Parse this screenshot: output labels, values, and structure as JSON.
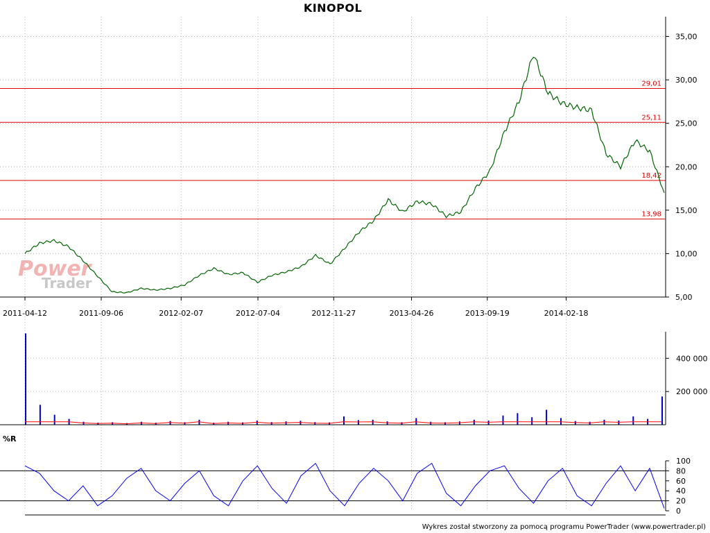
{
  "title": "KINOPOL",
  "footer": "Wykres został stworzony za pomocą programu PowerTrader (www.powertrader.pl)",
  "watermark": {
    "line1": "Power",
    "line2": "Trader"
  },
  "colors": {
    "price": "#006400",
    "levels": "#e00000",
    "volume": "#0000cc",
    "volume_avg": "#ff0000",
    "percent_r": "#0000ff",
    "grid": "#b4b4b4"
  },
  "chart_data": [
    {
      "type": "line",
      "panel": "price",
      "x_tick_labels": [
        "2011-04-12",
        "2011-09-06",
        "2012-02-07",
        "2012-07-04",
        "2012-11-27",
        "2013-04-26",
        "2013-09-19",
        "2014-02-18"
      ],
      "y_ticks": [
        5,
        10,
        15,
        20,
        25,
        30,
        35
      ],
      "y_tick_labels": [
        "5,00",
        "10,00",
        "15,00",
        "20,00",
        "25,00",
        "30,00",
        "35,00"
      ],
      "ylim": [
        5,
        36
      ],
      "grid": true,
      "series": [
        {
          "name": "",
          "points": [
            [
              "2011-04-12",
              10.0
            ],
            [
              "2011-05-10",
              11.2
            ],
            [
              "2011-06-07",
              11.5
            ],
            [
              "2011-07-05",
              10.8
            ],
            [
              "2011-08-02",
              9.2
            ],
            [
              "2011-08-30",
              7.4
            ],
            [
              "2011-09-27",
              5.6
            ],
            [
              "2011-10-25",
              5.5
            ],
            [
              "2011-11-22",
              6.0
            ],
            [
              "2011-12-20",
              5.8
            ],
            [
              "2012-01-17",
              6.0
            ],
            [
              "2012-02-14",
              6.4
            ],
            [
              "2012-03-13",
              7.5
            ],
            [
              "2012-04-10",
              8.3
            ],
            [
              "2012-05-08",
              7.6
            ],
            [
              "2012-06-05",
              7.8
            ],
            [
              "2012-07-03",
              6.7
            ],
            [
              "2012-07-31",
              7.5
            ],
            [
              "2012-08-28",
              7.9
            ],
            [
              "2012-09-25",
              8.5
            ],
            [
              "2012-10-23",
              9.8
            ],
            [
              "2012-11-20",
              8.8
            ],
            [
              "2012-12-18",
              10.6
            ],
            [
              "2013-01-15",
              12.5
            ],
            [
              "2013-02-12",
              13.8
            ],
            [
              "2013-03-12",
              16.2
            ],
            [
              "2013-04-09",
              14.8
            ],
            [
              "2013-05-07",
              16.0
            ],
            [
              "2013-06-04",
              15.7
            ],
            [
              "2013-07-02",
              14.3
            ],
            [
              "2013-07-30",
              14.8
            ],
            [
              "2013-08-27",
              17.5
            ],
            [
              "2013-09-24",
              19.5
            ],
            [
              "2013-10-22",
              24.0
            ],
            [
              "2013-11-19",
              27.5
            ],
            [
              "2013-12-17",
              33.0
            ],
            [
              "2014-01-14",
              28.5
            ],
            [
              "2014-02-11",
              27.3
            ],
            [
              "2014-03-11",
              26.8
            ],
            [
              "2014-04-08",
              26.5
            ],
            [
              "2014-05-06",
              21.5
            ],
            [
              "2014-06-03",
              20.0
            ],
            [
              "2014-07-01",
              23.0
            ],
            [
              "2014-07-29",
              21.8
            ],
            [
              "2014-08-26",
              17.0
            ]
          ]
        }
      ],
      "levels": [
        {
          "value": 29.01,
          "label": "29,01"
        },
        {
          "value": 25.11,
          "label": "25,11"
        },
        {
          "value": 18.42,
          "label": "18,42"
        },
        {
          "value": 13.98,
          "label": "13,98"
        }
      ]
    },
    {
      "type": "bar",
      "panel": "volume",
      "y_ticks": [
        200000,
        400000
      ],
      "y_tick_labels": [
        "200 000",
        "400 000"
      ],
      "ylim": [
        0,
        560000
      ],
      "values": [
        550000,
        120000,
        60000,
        35000,
        18000,
        12000,
        15000,
        10000,
        18000,
        12000,
        22000,
        15000,
        30000,
        12000,
        18000,
        14000,
        25000,
        16000,
        20000,
        24000,
        16000,
        14000,
        50000,
        28000,
        30000,
        20000,
        15000,
        40000,
        18000,
        15000,
        20000,
        30000,
        25000,
        55000,
        70000,
        45000,
        90000,
        40000,
        22000,
        18000,
        30000,
        25000,
        50000,
        35000,
        170000
      ]
    },
    {
      "type": "line",
      "panel": "percent_r",
      "name": "%R",
      "y_ticks": [
        0,
        20,
        40,
        60,
        80,
        100
      ],
      "y_tick_labels": [
        "0",
        "20",
        "40",
        "60",
        "80",
        "100"
      ],
      "ylim": [
        0,
        100
      ],
      "reference_lines": [
        20,
        80
      ],
      "values": [
        90,
        75,
        40,
        20,
        50,
        10,
        30,
        65,
        85,
        40,
        20,
        55,
        80,
        30,
        10,
        60,
        90,
        45,
        15,
        70,
        95,
        40,
        10,
        55,
        85,
        60,
        20,
        75,
        95,
        35,
        10,
        50,
        80,
        90,
        45,
        15,
        60,
        85,
        30,
        10,
        55,
        90,
        40,
        85,
        5
      ]
    }
  ]
}
